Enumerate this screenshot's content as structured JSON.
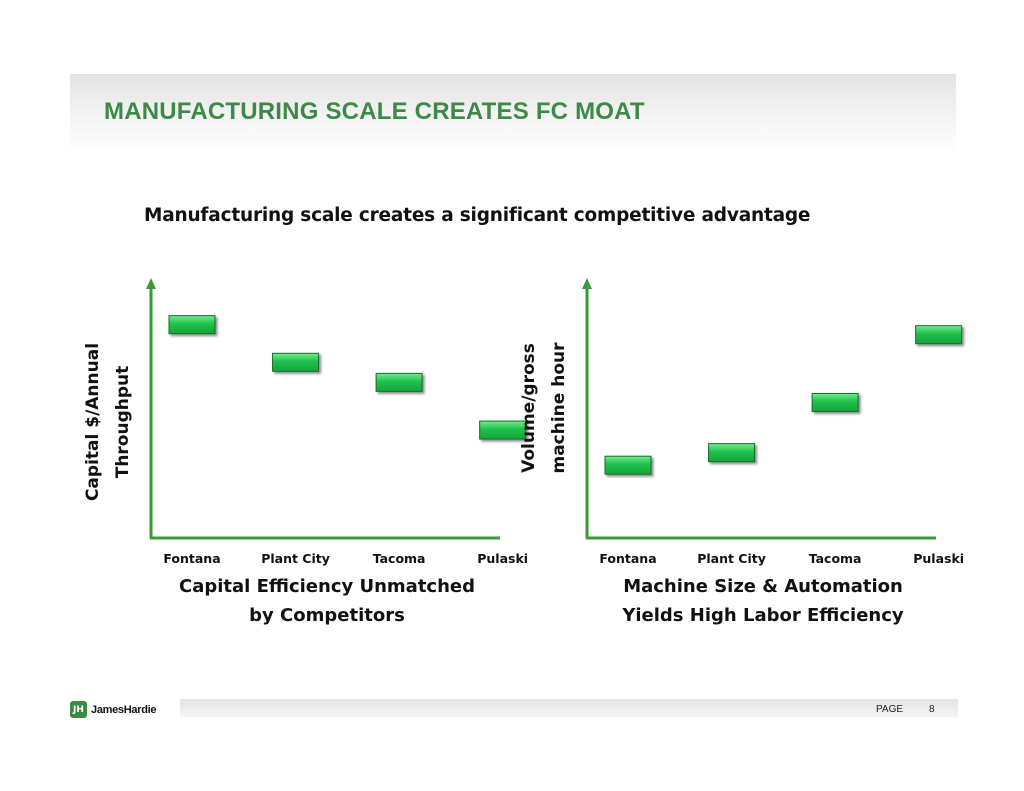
{
  "header": {
    "title": "MANUFACTURING SCALE CREATES FC MOAT"
  },
  "subtitle": "Manufacturing scale creates a significant competitive advantage",
  "chart_data": [
    {
      "type": "scatter",
      "categories": [
        "Fontana",
        "Plant City",
        "Tacoma",
        "Pulaski"
      ],
      "values": [
        8.5,
        7.0,
        6.2,
        4.3
      ],
      "ylim": [
        0,
        10
      ],
      "ylabel_lines": [
        "Capital $/Annual",
        "Throughput"
      ],
      "caption_lines": [
        "Capital Efficiency Unmatched",
        "by Competitors"
      ],
      "marker": "green-rectangle",
      "grid": false,
      "y_ticks_shown": false
    },
    {
      "type": "scatter",
      "categories": [
        "Fontana",
        "Plant City",
        "Tacoma",
        "Pulaski"
      ],
      "values": [
        2.9,
        3.4,
        5.4,
        8.1
      ],
      "ylim": [
        0,
        10
      ],
      "ylabel_lines": [
        "Volume/gross",
        "machine hour"
      ],
      "caption_lines": [
        "Machine Size & Automation",
        "Yields High Labor Efficiency"
      ],
      "marker": "green-rectangle",
      "grid": false,
      "y_ticks_shown": false
    }
  ],
  "colors": {
    "title": "#3c8a46",
    "axis": "#3a9a3a",
    "marker_fill": "#21c04c",
    "marker_edge": "#176a2c"
  },
  "footer": {
    "logo_text": "JamesHardie",
    "logo_icon": "jameshardie-logo-icon",
    "page_label": "PAGE",
    "page_number": "8"
  }
}
